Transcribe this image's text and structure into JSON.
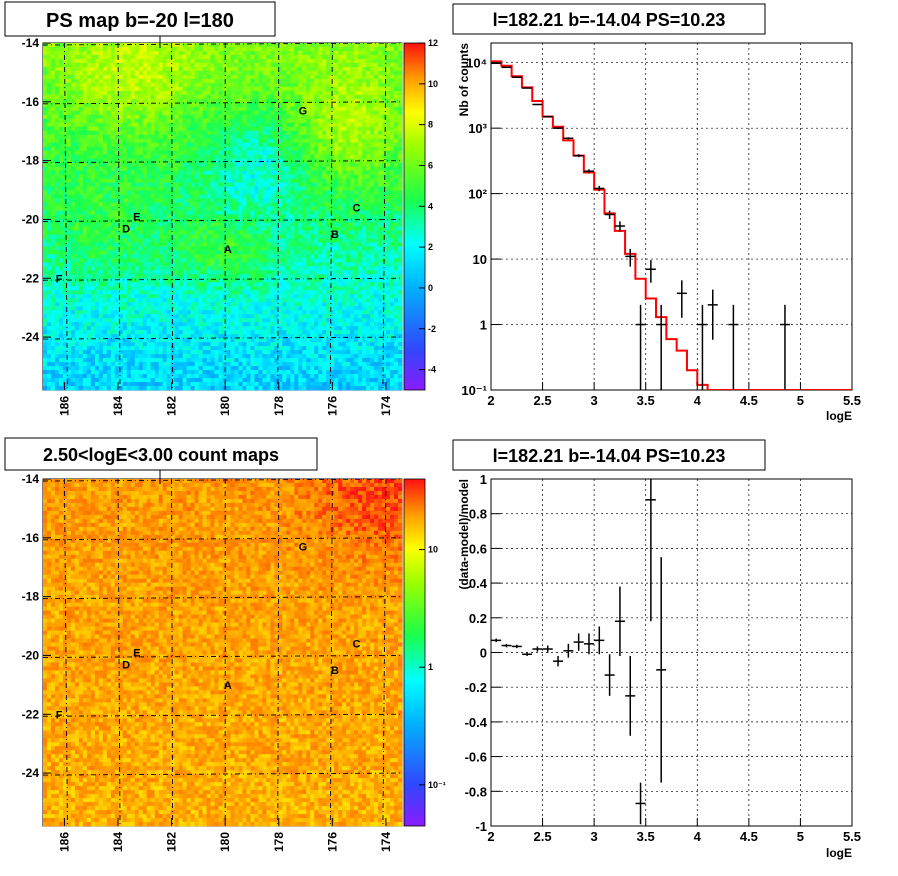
{
  "panels": {
    "ps_map": {
      "title": "PS map b=-20 l=180",
      "x_ticks": [
        "186",
        "184",
        "182",
        "180",
        "178",
        "176",
        "174"
      ],
      "y_ticks": [
        "-14",
        "-16",
        "-18",
        "-20",
        "-22",
        "-24"
      ],
      "colorbar_ticks": [
        "12",
        "10",
        "8",
        "6",
        "4",
        "2",
        "0",
        "-2",
        "-4"
      ],
      "source_labels": [
        "G",
        "E",
        "D",
        "A",
        "B",
        "C",
        "F"
      ]
    },
    "count_map": {
      "title": "2.50<logE<3.00 count maps",
      "x_ticks": [
        "186",
        "184",
        "182",
        "180",
        "178",
        "176",
        "174"
      ],
      "y_ticks": [
        "-14",
        "-16",
        "-18",
        "-20",
        "-22",
        "-24"
      ],
      "colorbar_ticks": [
        "10",
        "1",
        "10⁻¹"
      ],
      "source_labels": [
        "G",
        "E",
        "D",
        "A",
        "B",
        "C",
        "F"
      ]
    },
    "spectrum": {
      "title": "l=182.21 b=-14.04 PS=10.23",
      "xlabel": "logE",
      "ylabel": "Nb of counts",
      "x_ticks": [
        "2",
        "2.5",
        "3",
        "3.5",
        "4",
        "4.5",
        "5",
        "5.5"
      ],
      "y_ticks": [
        "10⁻¹",
        "1",
        "10",
        "10²",
        "10³",
        "10⁴"
      ]
    },
    "residual": {
      "title": "l=182.21 b=-14.04 PS=10.23",
      "xlabel": "logE",
      "ylabel": "(data-model)/model",
      "x_ticks": [
        "2",
        "2.5",
        "3",
        "3.5",
        "4",
        "4.5",
        "5",
        "5.5"
      ],
      "y_ticks": [
        "1",
        "0.8",
        "0.6",
        "0.4",
        "0.2",
        "0",
        "-0.2",
        "-0.4",
        "-0.6",
        "-0.8",
        "-1"
      ]
    }
  },
  "chart_data": [
    {
      "type": "heatmap",
      "title": "PS map b=-20 l=180",
      "x_range": [
        186.8,
        173.4
      ],
      "y_range": [
        -25.8,
        -14
      ],
      "z_range": [
        -5,
        12
      ],
      "grid": true,
      "sources": [
        {
          "label": "G",
          "l": 177.1,
          "b": -16.3
        },
        {
          "label": "E",
          "l": 183.3,
          "b": -19.9
        },
        {
          "label": "D",
          "l": 183.7,
          "b": -20.3
        },
        {
          "label": "A",
          "l": 179.9,
          "b": -21.0
        },
        {
          "label": "B",
          "l": 175.9,
          "b": -20.5
        },
        {
          "label": "C",
          "l": 175.1,
          "b": -19.6
        },
        {
          "label": "F",
          "l": 186.2,
          "b": -22.0
        }
      ]
    },
    {
      "type": "line",
      "title": "l=182.21 b=-14.04 PS=10.23",
      "xlabel": "logE",
      "ylabel": "Nb of counts",
      "xlim": [
        2,
        5.5
      ],
      "ylim": [
        0.1,
        20000
      ],
      "log_y": true,
      "grid": true,
      "model_bins": [
        2.0,
        2.1,
        2.2,
        2.3,
        2.4,
        2.5,
        2.6,
        2.7,
        2.8,
        2.9,
        3.0,
        3.1,
        3.2,
        3.3,
        3.4,
        3.5,
        3.6,
        3.7,
        3.8,
        3.9,
        4.0,
        4.1,
        4.2,
        5.5
      ],
      "model_values": [
        10500,
        9000,
        6200,
        4200,
        2600,
        1500,
        1050,
        650,
        380,
        210,
        115,
        50,
        27,
        12,
        5,
        2.5,
        1.3,
        0.6,
        0.4,
        0.2,
        0.12,
        0.1,
        0.1
      ],
      "data": [
        {
          "x": 2.05,
          "y": 9800
        },
        {
          "x": 2.15,
          "y": 8500
        },
        {
          "x": 2.25,
          "y": 6000
        },
        {
          "x": 2.35,
          "y": 4100
        },
        {
          "x": 2.45,
          "y": 2300
        },
        {
          "x": 2.55,
          "y": 1500
        },
        {
          "x": 2.65,
          "y": 1000
        },
        {
          "x": 2.75,
          "y": 700
        },
        {
          "x": 2.85,
          "y": 380
        },
        {
          "x": 2.95,
          "y": 220
        },
        {
          "x": 3.05,
          "y": 120
        },
        {
          "x": 3.15,
          "y": 48
        },
        {
          "x": 3.25,
          "y": 32
        },
        {
          "x": 3.35,
          "y": 11
        },
        {
          "x": 3.45,
          "y": 1
        },
        {
          "x": 3.55,
          "y": 7
        },
        {
          "x": 3.65,
          "y": 1
        },
        {
          "x": 3.85,
          "y": 3
        },
        {
          "x": 4.05,
          "y": 1
        },
        {
          "x": 4.15,
          "y": 2
        },
        {
          "x": 4.35,
          "y": 1
        },
        {
          "x": 4.85,
          "y": 1
        }
      ]
    },
    {
      "type": "heatmap",
      "title": "2.50<logE<3.00 count maps",
      "x_range": [
        186.8,
        173.4
      ],
      "y_range": [
        -25.8,
        -14
      ],
      "log_z": true,
      "z_range": [
        0.05,
        40
      ],
      "grid": true
    },
    {
      "type": "scatter",
      "title": "l=182.21 b=-14.04 PS=10.23",
      "xlabel": "logE",
      "ylabel": "(data-model)/model",
      "xlim": [
        2,
        5.5
      ],
      "ylim": [
        -1,
        1
      ],
      "grid": true,
      "points": [
        {
          "x": 2.05,
          "y": 0.07,
          "err": 0.01
        },
        {
          "x": 2.15,
          "y": 0.04,
          "err": 0.01
        },
        {
          "x": 2.25,
          "y": 0.035,
          "err": 0.01
        },
        {
          "x": 2.35,
          "y": -0.01,
          "err": 0.01
        },
        {
          "x": 2.45,
          "y": 0.02,
          "err": 0.015
        },
        {
          "x": 2.55,
          "y": 0.02,
          "err": 0.02
        },
        {
          "x": 2.65,
          "y": -0.05,
          "err": 0.03
        },
        {
          "x": 2.75,
          "y": 0.01,
          "err": 0.04
        },
        {
          "x": 2.85,
          "y": 0.06,
          "err": 0.05
        },
        {
          "x": 2.95,
          "y": 0.05,
          "err": 0.06
        },
        {
          "x": 3.05,
          "y": 0.07,
          "err": 0.08
        },
        {
          "x": 3.15,
          "y": -0.13,
          "err": 0.12
        },
        {
          "x": 3.25,
          "y": 0.18,
          "err": 0.2
        },
        {
          "x": 3.35,
          "y": -0.25,
          "err": 0.23
        },
        {
          "x": 3.45,
          "y": -0.87,
          "err": 0.12
        },
        {
          "x": 3.55,
          "y": 0.88,
          "err": 0.7
        },
        {
          "x": 3.65,
          "y": -0.1,
          "err": 0.65
        }
      ]
    }
  ]
}
